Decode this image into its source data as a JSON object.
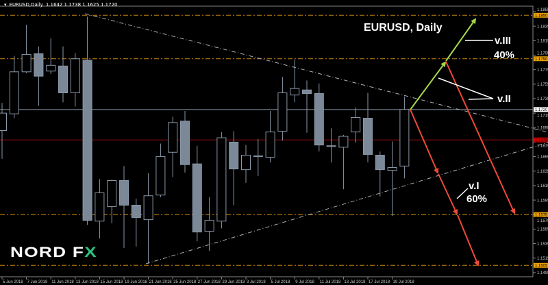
{
  "header": {
    "symbol": "EURUSD,Daily",
    "ohlc": "1.1642 1.1738 1.1625 1.1720",
    "menu_icon": "triangle-down-icon"
  },
  "annotations": {
    "title": "EURUSD, Daily",
    "wave3": "v.III",
    "wave3_pct": "40%",
    "wave2": "v.II",
    "wave1": "v.I",
    "wave1_pct": "60%"
  },
  "logo": {
    "text_a": "NORD F",
    "text_b": "X"
  },
  "colors": {
    "background": "#000000",
    "bull_body": "#000000",
    "bear_body": "#7a8898",
    "candle_outline": "#8a98a8",
    "level_line": "#c8860a",
    "bid_line": "#a01010",
    "current_line": "#8a98a8",
    "trendline": "#b0b0b0",
    "arrow_up": "#a8d84a",
    "arrow_down": "#f04a3a"
  },
  "chart_data": {
    "type": "candlestick",
    "symbol": "EURUSD",
    "timeframe": "Daily",
    "ylim": [
      1.149,
      1.186
    ],
    "y_ticks": [
      "1.1855",
      "1.1835",
      "1.1815",
      "1.1795",
      "1.1775",
      "1.1755",
      "1.1735",
      "1.1715",
      "1.1695",
      "1.1675",
      "1.1655",
      "1.1635",
      "1.1615",
      "1.1595",
      "1.1575",
      "1.1555",
      "1.1535",
      "1.1515",
      "1.1495"
    ],
    "x_ticks": [
      "5 Jun 2018",
      "7 Jun 2018",
      "11 Jun 2018",
      "13 Jun 2018",
      "15 Jun 2018",
      "19 Jun 2018",
      "21 Jun 2018",
      "25 Jun 2018",
      "27 Jun 2018",
      "29 Jun 2018",
      "3 Jul 2018",
      "5 Jul 2018",
      "9 Jul 2018",
      "11 Jul 2018",
      "13 Jul 2018",
      "17 Jul 2018",
      "19 Jul 2018"
    ],
    "price_labels": [
      {
        "value": "1.1850",
        "kind": "level"
      },
      {
        "value": "1.1790",
        "kind": "level"
      },
      {
        "value": "1.1720",
        "kind": "current"
      },
      {
        "value": "1.1678",
        "kind": "bid"
      },
      {
        "value": "1.1575",
        "kind": "level"
      },
      {
        "value": "1.1505",
        "kind": "level"
      }
    ],
    "candles": [
      {
        "o": 1.1691,
        "h": 1.1729,
        "l": 1.1652,
        "c": 1.1715
      },
      {
        "o": 1.1714,
        "h": 1.1794,
        "l": 1.1708,
        "c": 1.1772
      },
      {
        "o": 1.1772,
        "h": 1.1837,
        "l": 1.177,
        "c": 1.1796
      },
      {
        "o": 1.1797,
        "h": 1.1807,
        "l": 1.1725,
        "c": 1.1766
      },
      {
        "o": 1.1773,
        "h": 1.1818,
        "l": 1.1769,
        "c": 1.1781
      },
      {
        "o": 1.178,
        "h": 1.1807,
        "l": 1.173,
        "c": 1.1743
      },
      {
        "o": 1.1743,
        "h": 1.1798,
        "l": 1.1724,
        "c": 1.179
      },
      {
        "o": 1.1788,
        "h": 1.1848,
        "l": 1.1561,
        "c": 1.1567
      },
      {
        "o": 1.1566,
        "h": 1.1624,
        "l": 1.1542,
        "c": 1.1605
      },
      {
        "o": 1.1586,
        "h": 1.1623,
        "l": 1.1563,
        "c": 1.1622
      },
      {
        "o": 1.1622,
        "h": 1.1642,
        "l": 1.1529,
        "c": 1.1588
      },
      {
        "o": 1.1588,
        "h": 1.1597,
        "l": 1.1531,
        "c": 1.1571
      },
      {
        "o": 1.1568,
        "h": 1.1632,
        "l": 1.1507,
        "c": 1.1601
      },
      {
        "o": 1.1602,
        "h": 1.1673,
        "l": 1.1599,
        "c": 1.1655
      },
      {
        "o": 1.1661,
        "h": 1.171,
        "l": 1.1627,
        "c": 1.1702
      },
      {
        "o": 1.1704,
        "h": 1.1718,
        "l": 1.1633,
        "c": 1.1644
      },
      {
        "o": 1.1645,
        "h": 1.167,
        "l": 1.1538,
        "c": 1.1551
      },
      {
        "o": 1.1552,
        "h": 1.1599,
        "l": 1.1525,
        "c": 1.1567
      },
      {
        "o": 1.1566,
        "h": 1.1689,
        "l": 1.1556,
        "c": 1.1681
      },
      {
        "o": 1.1675,
        "h": 1.169,
        "l": 1.1588,
        "c": 1.1638
      },
      {
        "o": 1.1637,
        "h": 1.1671,
        "l": 1.1619,
        "c": 1.1657
      },
      {
        "o": 1.1655,
        "h": 1.1679,
        "l": 1.1628,
        "c": 1.1656
      },
      {
        "o": 1.1654,
        "h": 1.1718,
        "l": 1.1647,
        "c": 1.1689
      },
      {
        "o": 1.169,
        "h": 1.1765,
        "l": 1.1677,
        "c": 1.1743
      },
      {
        "o": 1.174,
        "h": 1.1789,
        "l": 1.173,
        "c": 1.1749
      },
      {
        "o": 1.1747,
        "h": 1.176,
        "l": 1.1688,
        "c": 1.1742
      },
      {
        "o": 1.1742,
        "h": 1.1756,
        "l": 1.1662,
        "c": 1.1671
      },
      {
        "o": 1.1669,
        "h": 1.1694,
        "l": 1.1647,
        "c": 1.167
      },
      {
        "o": 1.1668,
        "h": 1.1685,
        "l": 1.161,
        "c": 1.1683
      },
      {
        "o": 1.1689,
        "h": 1.1723,
        "l": 1.1674,
        "c": 1.1709
      },
      {
        "o": 1.1708,
        "h": 1.1743,
        "l": 1.1647,
        "c": 1.1658
      },
      {
        "o": 1.1657,
        "h": 1.1662,
        "l": 1.16,
        "c": 1.1637
      },
      {
        "o": 1.1636,
        "h": 1.1676,
        "l": 1.1573,
        "c": 1.164
      },
      {
        "o": 1.1642,
        "h": 1.1738,
        "l": 1.1625,
        "c": 1.172
      }
    ]
  }
}
